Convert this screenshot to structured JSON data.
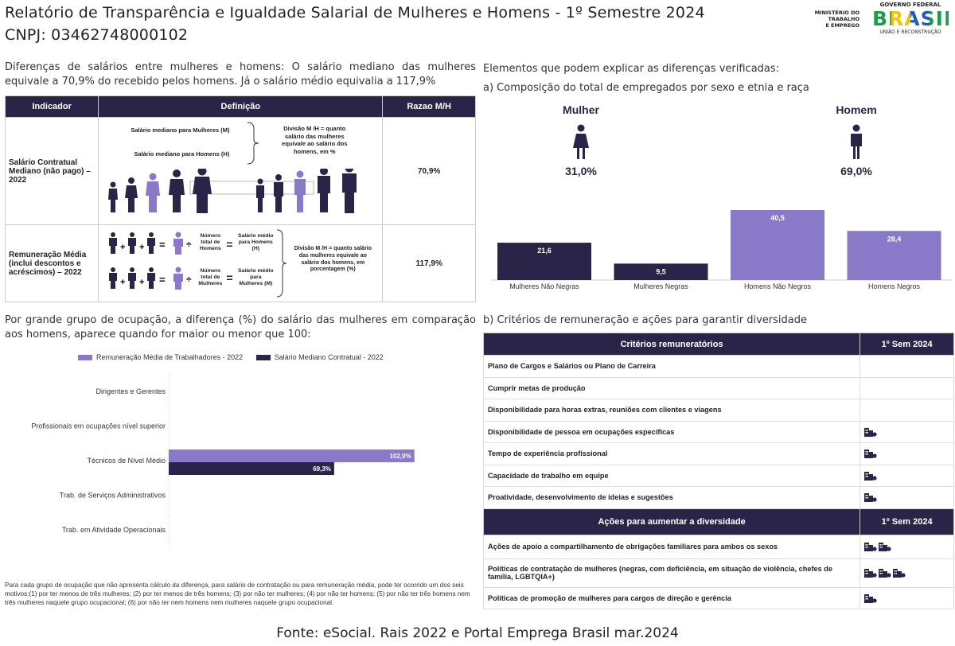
{
  "header": {
    "title": "Relatório de Transparência e Igualdade Salarial de Mulheres e Homens - 1º Semestre 2024",
    "cnpj": "CNPJ: 03462748000102",
    "ministry_logo_text": [
      "MINISTÉRIO DO",
      "TRABALHO",
      "E EMPREGO"
    ],
    "gov_logo_text": "GOVERNO FEDERAL",
    "gov_logo_word": "BRASIL",
    "gov_logo_sub": "UNIÃO E RECONSTRUÇÃO"
  },
  "intro": "Diferenças de salários entre mulheres e homens: O salário mediano das mulheres equivale a 70,9% do recebido pelos homens. Já o salário médio equivalia a 117,9%",
  "indicators": {
    "headers": [
      "Indicador",
      "Definição",
      "Razao M/H"
    ],
    "row1": {
      "name": "Salário Contratual Mediano (não pago) – 2022",
      "label_m": "Salário mediano para Mulheres (M)",
      "label_h": "Salário mediano para Homens (H)",
      "division": "Divisão M /H = quanto salário das mulheres equivale ao salário dos homens, em %",
      "ratio": "70,9%"
    },
    "row2": {
      "name": "Remuneração Média (inclui descontos e acréscimos) – 2022",
      "total_h": "Número total de Homens",
      "avg_h": "Salário médio para Homens (H)",
      "total_m": "Número total de Mulheres",
      "avg_m": "Salário médio para Mulheres (M)",
      "division": "Divisão M /H = quanto salário das mulheres equivale ao salário dos homens, em porcentagem (%)",
      "ratio": "117,9%"
    }
  },
  "composition": {
    "section_title": "Elementos que podem explicar as diferenças verificadas:",
    "subtitle": "a) Composição do total de empregados por sexo e etnia e raça",
    "woman_label": "Mulher",
    "woman_pct": "31,0%",
    "man_label": "Homem",
    "man_pct": "69,0%",
    "colors": {
      "dark": "#2a2548",
      "light": "#8a78c9"
    }
  },
  "chart_data": [
    {
      "type": "bar",
      "categories": [
        "Mulheres Não Negras",
        "Mulheres Negras",
        "Homens Não Negros",
        "Homens Negros"
      ],
      "values": [
        21.6,
        9.5,
        40.5,
        28.4
      ],
      "value_labels": [
        "21,6",
        "9,5",
        "40,5",
        "28,4"
      ]
    },
    {
      "type": "bar",
      "orientation": "horizontal",
      "categories": [
        "Dirigentes e Gerentes",
        "Profissionais em ocupações nível superior",
        "Técnicos de Nível Médio",
        "Trab. de Serviços Administrativos",
        "Trab. em Atividade Operacionais"
      ],
      "series": [
        {
          "name": "Remuneração Média de Trabalhadores - 2022",
          "values": [
            null,
            null,
            102.9,
            null,
            null
          ],
          "value_labels": [
            "",
            "",
            "102,9%",
            "",
            ""
          ]
        },
        {
          "name": "Salário Mediano Contratual - 2022",
          "values": [
            null,
            null,
            69.3,
            null,
            null
          ],
          "value_labels": [
            "",
            "",
            "69,3%",
            "",
            ""
          ]
        }
      ]
    }
  ],
  "occupation": {
    "title": "Por grande grupo de ocupação, a diferença (%) do salário das mulheres em comparação aos homens, aparece quando for maior ou menor que 100:",
    "note": "Para cada grupo de ocupação que não apresenta cálculo da diferença, para salário de contratação ou para remuneração média, pode ter ocorrido um dos seis motivos:(1) por ter menos de três mulheres; (2) por ter menos de três homens; (3) por não ter mulheres; (4) por não ter homens; (5) por não ter três homens nem três mulheres naquele grupo ocupacional; (6) por não ter nem homens nem mulheres naquele grupo ocupacional."
  },
  "criteria": {
    "title": "b) Critérios de remuneração e ações para garantir diversidade",
    "header1": "Critérios remuneratórios",
    "header_sem": "1º Sem 2024",
    "rows": [
      {
        "label": "Plano de Cargos e Salários ou Plano de Carreira",
        "icons": 0
      },
      {
        "label": "Cumprir metas de produção",
        "icons": 0
      },
      {
        "label": "Disponibilidade para horas extras, reuniões com clientes e viagens",
        "icons": 0
      },
      {
        "label": "Disponibilidade de pessoa em ocupações específicas",
        "icons": 1
      },
      {
        "label": "Tempo de experiência profissional",
        "icons": 1
      },
      {
        "label": "Capacidade de trabalho em equipe",
        "icons": 1
      },
      {
        "label": "Proatividade, desenvolvimento de ideias e sugestões",
        "icons": 1
      }
    ],
    "header2": "Ações para aumentar a diversidade",
    "actions": [
      {
        "label": "Ações de apoio a compartilhamento de obrigações familiares para ambos os sexos",
        "icons": 2
      },
      {
        "label": "Políticas de contratação de mulheres (negras, com deficiência, em situação de violência, chefes de família, LGBTQIA+)",
        "icons": 3
      },
      {
        "label": "Políticas de promoção de mulheres para cargos de direção e gerência",
        "icons": 1
      }
    ],
    "icon_name": "building-icon"
  },
  "footer": "Fonte: eSocial. Rais 2022 e Portal Emprega Brasil mar.2024"
}
